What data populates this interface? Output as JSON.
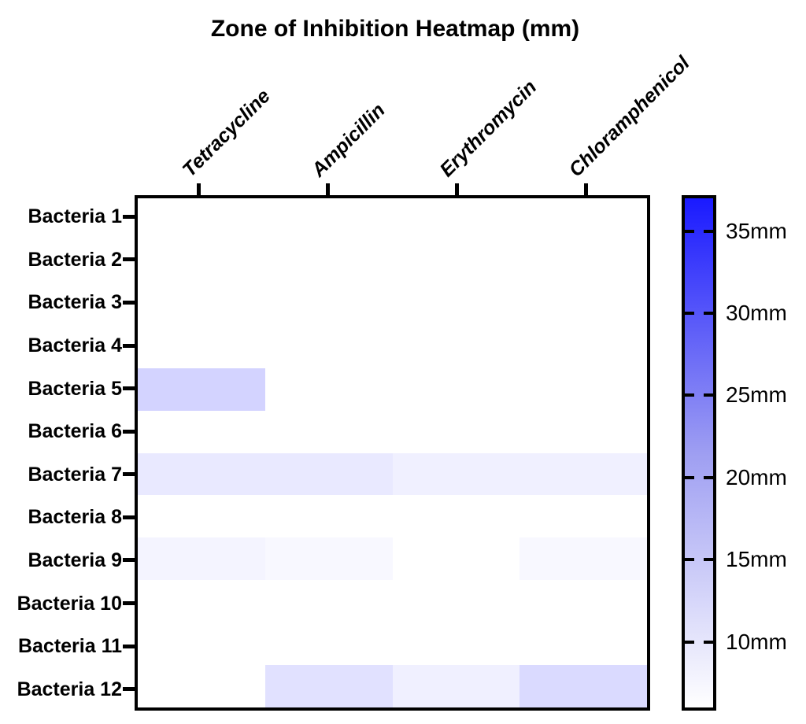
{
  "title": "Zone of Inhibition Heatmap (mm)",
  "chart_data": {
    "type": "heatmap",
    "title": "Zone of Inhibition Heatmap (mm)",
    "unit": "mm",
    "columns": [
      "Tetracycline",
      "Ampicillin",
      "Erythromycin",
      "Chloramphenicol"
    ],
    "rows": [
      "Bacteria 1",
      "Bacteria 2",
      "Bacteria 3",
      "Bacteria 4",
      "Bacteria 5",
      "Bacteria 6",
      "Bacteria 7",
      "Bacteria 8",
      "Bacteria 9",
      "Bacteria 10",
      "Bacteria 11",
      "Bacteria 12"
    ],
    "values_mm": [
      [
        6,
        6,
        6,
        6
      ],
      [
        6,
        6,
        6,
        6
      ],
      [
        6,
        6,
        6,
        6
      ],
      [
        6,
        6,
        6,
        6
      ],
      [
        12,
        6,
        6,
        6
      ],
      [
        6,
        6,
        6,
        6
      ],
      [
        9,
        9,
        8,
        8
      ],
      [
        6,
        6,
        6,
        6
      ],
      [
        7.5,
        7,
        6,
        7
      ],
      [
        6,
        6,
        6,
        6
      ],
      [
        6,
        6,
        6,
        6
      ],
      [
        6,
        10,
        8,
        11
      ]
    ],
    "colorbar": {
      "position": "right",
      "tick_labels": [
        "35mm",
        "30mm",
        "25mm",
        "20mm",
        "15mm",
        "10mm"
      ],
      "tick_values": [
        35,
        30,
        25,
        20,
        15,
        10
      ],
      "scale_min": 6,
      "scale_max": 37,
      "min_color": "#ffffff",
      "max_color": "#1a1aff"
    },
    "grid": false,
    "legend_position": "right"
  }
}
